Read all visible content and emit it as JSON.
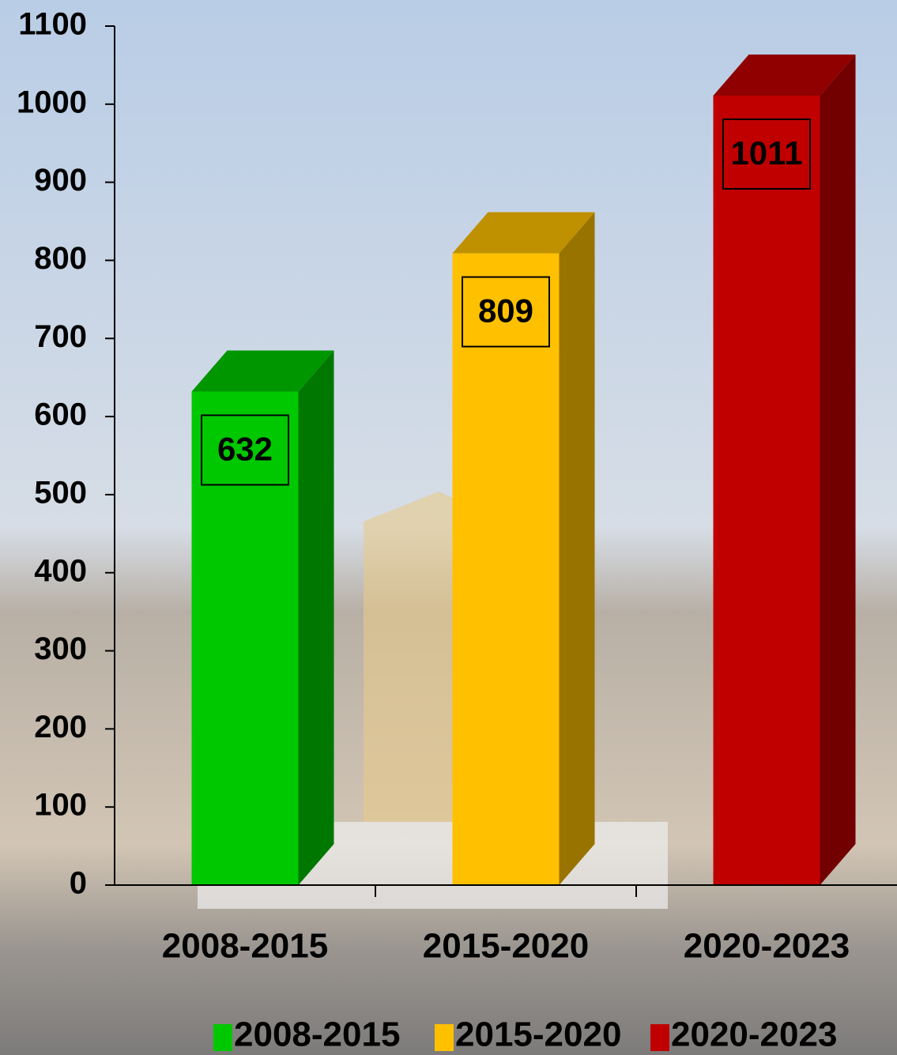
{
  "chart_data": {
    "type": "bar3d",
    "categories": [
      "2008-2015",
      "2015-2020",
      "2020-2023"
    ],
    "series": [
      {
        "name": "2008-2015",
        "color": "#00c800",
        "values": [
          632,
          null,
          null
        ]
      },
      {
        "name": "2015-2020",
        "color": "#ffc000",
        "values": [
          null,
          809,
          null
        ]
      },
      {
        "name": "2020-2023",
        "color": "#c00000",
        "values": [
          null,
          null,
          1011
        ]
      }
    ],
    "ylim": [
      0,
      1100
    ],
    "yticks": [
      0,
      100,
      200,
      300,
      400,
      500,
      600,
      700,
      800,
      900,
      1000,
      1100
    ],
    "legend": "bottom"
  }
}
